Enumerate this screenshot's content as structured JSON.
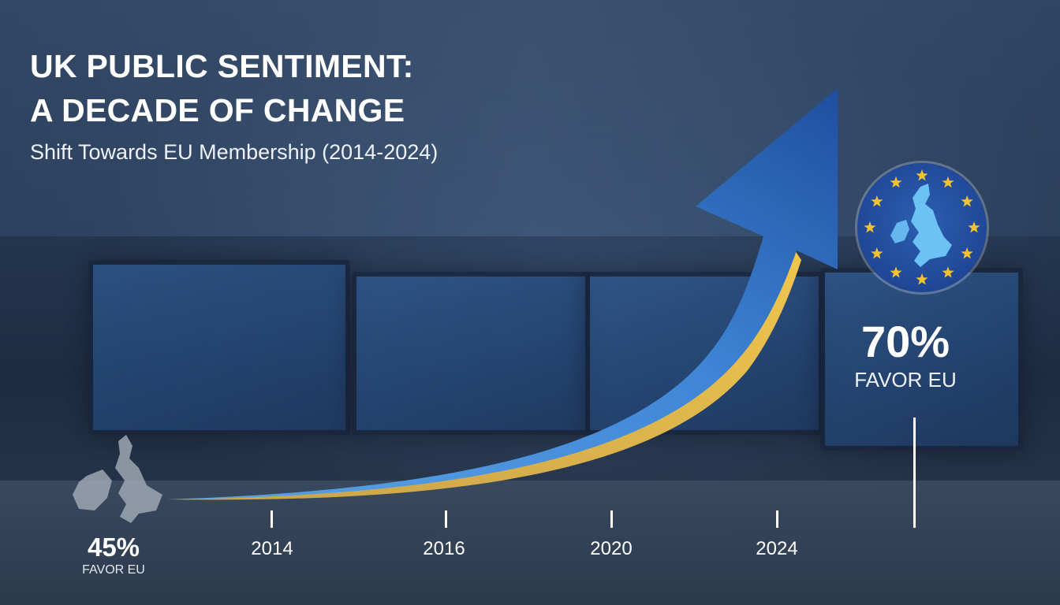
{
  "title_line1": "UK PUBLIC SENTIMENT:",
  "title_line2": "A DECADE OF CHANGE",
  "subtitle": "Shift Towards EU Membership (2014-2024)",
  "start_stat": {
    "value": "45%",
    "label": "FAVOR EU"
  },
  "end_stat": {
    "value": "70%",
    "label": "FAVOR EU"
  },
  "colors": {
    "arrow_blue": "#2f6fc4",
    "arrow_gold": "#e3b94a",
    "eu_blue": "#1f4796",
    "star": "#f2c230",
    "uk_map": "#6cc2f5"
  },
  "icons": {
    "start": "uk-ireland-map-icon",
    "end": "eu-flag-uk-map-icon"
  },
  "chart_data": {
    "type": "line",
    "title": "UK PUBLIC SENTIMENT: A DECADE OF CHANGE",
    "subtitle": "Shift Towards EU Membership (2014-2024)",
    "categories": [
      "2014",
      "2016",
      "2020",
      "2024"
    ],
    "start_value": 45,
    "end_value": 70,
    "unit": "% favor EU",
    "style": "rising trend arrow",
    "grid": false,
    "legend": "none"
  }
}
